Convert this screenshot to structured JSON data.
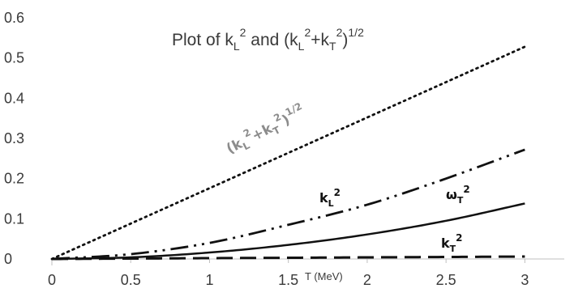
{
  "chart_data": {
    "type": "line",
    "title": "Plot of k_L^2 and (k_L^2+k_T^2)^1/2",
    "title_parts": {
      "prefix": "Plot of k",
      "sub1": "L",
      "sup1": "2",
      "mid": " and (k",
      "sub2": "L",
      "sup2": "2",
      "plus": "+k",
      "sub3": "T",
      "sup3": "2",
      "close": ")",
      "sup4": "1/2"
    },
    "xlabel": "T (MeV)",
    "ylabel": "",
    "xlim": [
      0,
      3.25
    ],
    "ylim": [
      0,
      0.6
    ],
    "xticks": [
      "0",
      "0.5",
      "1",
      "1.5",
      "2",
      "2.5",
      "3"
    ],
    "yticks": [
      "0",
      "0.1",
      "0.2",
      "0.3",
      "0.4",
      "0.5",
      "0.6"
    ],
    "grid": false,
    "legend": "none",
    "series": [
      {
        "key": "sum",
        "label": "(kL2+kT2)1/2",
        "style": "dotted",
        "color": "#111111",
        "x": [
          0,
          0.5,
          1,
          1.5,
          2,
          2.5,
          3
        ],
        "y": [
          0,
          0.088,
          0.176,
          0.264,
          0.352,
          0.44,
          0.528
        ]
      },
      {
        "key": "kL",
        "label": "kL2",
        "style": "dash-dot-dot",
        "color": "#111111",
        "x": [
          0,
          0.5,
          1,
          1.5,
          2,
          2.5,
          3
        ],
        "y": [
          0,
          0.012,
          0.04,
          0.085,
          0.135,
          0.2,
          0.272
        ]
      },
      {
        "key": "omega",
        "label": "ωT2",
        "style": "solid",
        "color": "#111111",
        "x": [
          0,
          0.5,
          1,
          1.5,
          2,
          2.5,
          3
        ],
        "y": [
          0,
          0.004,
          0.016,
          0.035,
          0.061,
          0.095,
          0.138
        ]
      },
      {
        "key": "kT",
        "label": "kT2",
        "style": "dashed",
        "color": "#111111",
        "x": [
          0,
          0.5,
          1,
          1.5,
          2,
          2.5,
          3
        ],
        "y": [
          0,
          0.001,
          0.002,
          0.003,
          0.004,
          0.005,
          0.006
        ]
      }
    ],
    "annotations": {
      "sum": {
        "base": "(k",
        "s1": "L",
        "p1": "2",
        "plus": "+k",
        "s2": "T",
        "p2": "2",
        "close": ")",
        "p3": "1/2",
        "color": "#8c8c8c"
      },
      "kL": {
        "base": "k",
        "sub": "L",
        "sup": "2"
      },
      "omega": {
        "base": "ω",
        "sub": "T",
        "sup": "2"
      },
      "kT": {
        "base": "k",
        "sub": "T",
        "sup": "2"
      }
    }
  }
}
